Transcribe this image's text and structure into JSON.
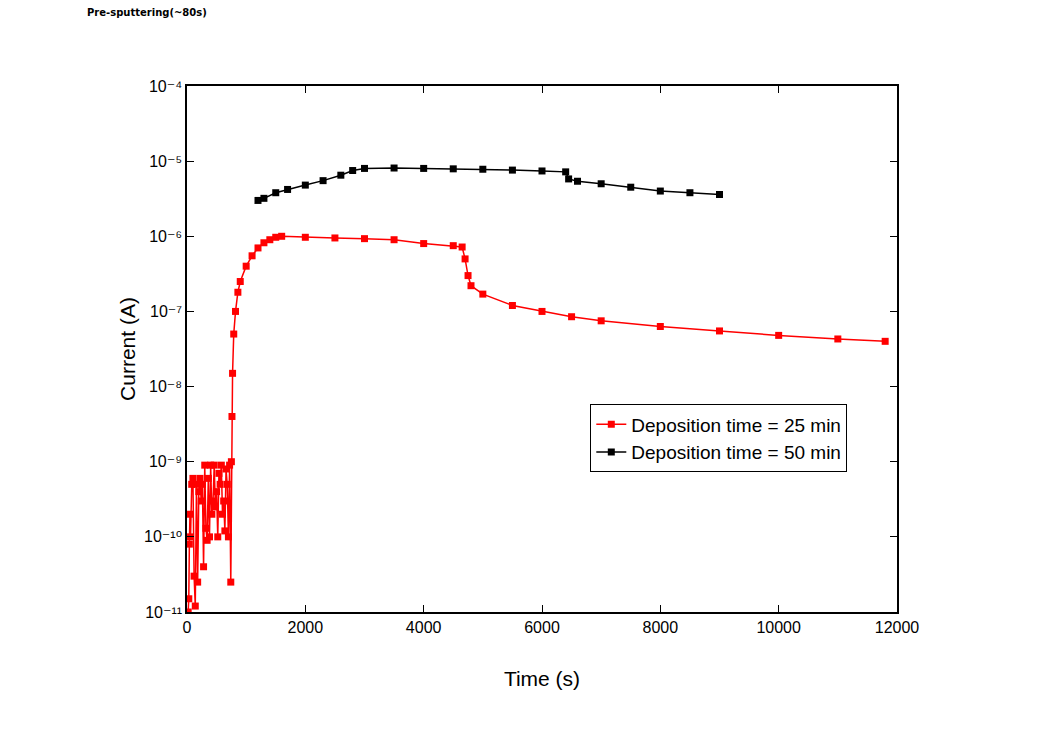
{
  "chart_data": {
    "type": "line",
    "annotations": [
      "Pre-sputtering(~80s)"
    ],
    "x_label": "Time (s)",
    "y_label": "Current (A)",
    "log": "y",
    "grid": false,
    "legend": "center right",
    "xlim": [
      0,
      12000
    ],
    "xticks": [
      0,
      2000,
      4000,
      6000,
      8000,
      10000,
      12000
    ],
    "ylim": [
      1e-11,
      0.0001
    ],
    "yticks": [
      {
        "value": 1e-11,
        "label": "10⁻¹¹"
      },
      {
        "value": 1e-10,
        "label": "10⁻¹⁰"
      },
      {
        "value": 1e-09,
        "label": "10⁻⁹"
      },
      {
        "value": 1e-08,
        "label": "10⁻⁸"
      },
      {
        "value": 1e-07,
        "label": "10⁻⁷"
      },
      {
        "value": 1e-06,
        "label": "10⁻⁶"
      },
      {
        "value": 1e-05,
        "label": "10⁻⁵"
      },
      {
        "value": 0.0001,
        "label": "10⁻⁴"
      }
    ],
    "series": [
      {
        "name": "Deposition time = 25 min",
        "color": "#ff0000",
        "marker": "square",
        "line_style": "solid",
        "x": [
          20,
          30,
          40,
          50,
          60,
          80,
          100,
          120,
          140,
          160,
          180,
          200,
          220,
          240,
          260,
          280,
          300,
          320,
          340,
          360,
          380,
          400,
          420,
          440,
          460,
          480,
          500,
          520,
          540,
          560,
          580,
          600,
          620,
          640,
          660,
          680,
          700,
          720,
          740,
          750,
          760,
          770,
          790,
          820,
          860,
          900,
          1000,
          1100,
          1200,
          1300,
          1400,
          1500,
          1600,
          2000,
          2500,
          3000,
          3500,
          4000,
          4500,
          4650,
          4700,
          4750,
          4800,
          5000,
          5500,
          6000,
          6500,
          7000,
          8000,
          9000,
          10000,
          11000,
          11800
        ],
        "values": [
          1e-11,
          1.5e-11,
          8e-11,
          2e-10,
          1e-10,
          5e-10,
          6e-10,
          3e-11,
          1.2e-11,
          5e-10,
          2.5e-11,
          4e-10,
          6e-10,
          3e-10,
          5e-10,
          4e-11,
          9e-10,
          1.3e-10,
          9e-11,
          6e-10,
          1e-10,
          9e-10,
          2e-10,
          3e-10,
          9e-10,
          2.5e-10,
          4e-10,
          1e-10,
          7e-10,
          5e-10,
          9e-10,
          2e-10,
          3e-10,
          1.2e-10,
          8e-10,
          5e-10,
          1e-10,
          9e-10,
          2.5e-11,
          1e-09,
          4e-09,
          1.5e-08,
          5e-08,
          1e-07,
          1.8e-07,
          2.5e-07,
          4e-07,
          5.5e-07,
          7e-07,
          8.2e-07,
          9e-07,
          9.7e-07,
          1e-06,
          9.7e-07,
          9.5e-07,
          9.3e-07,
          9e-07,
          8e-07,
          7.5e-07,
          7.2e-07,
          5e-07,
          3e-07,
          2.2e-07,
          1.7e-07,
          1.2e-07,
          1e-07,
          8.5e-08,
          7.5e-08,
          6.3e-08,
          5.5e-08,
          4.8e-08,
          4.3e-08,
          4e-08
        ]
      },
      {
        "name": "Deposition time = 50 min",
        "color": "#000000",
        "marker": "square",
        "line_style": "solid",
        "x": [
          1200,
          1300,
          1500,
          1700,
          2000,
          2300,
          2600,
          2800,
          3000,
          3500,
          4000,
          4500,
          5000,
          5500,
          6000,
          6400,
          6450,
          6600,
          7000,
          7500,
          8000,
          8500,
          9000
        ],
        "values": [
          3e-06,
          3.2e-06,
          3.8e-06,
          4.2e-06,
          4.8e-06,
          5.5e-06,
          6.5e-06,
          7.5e-06,
          8e-06,
          8.1e-06,
          8e-06,
          7.9e-06,
          7.8e-06,
          7.6e-06,
          7.4e-06,
          7.2e-06,
          5.8e-06,
          5.4e-06,
          5e-06,
          4.5e-06,
          4e-06,
          3.8e-06,
          3.6e-06
        ]
      }
    ]
  }
}
